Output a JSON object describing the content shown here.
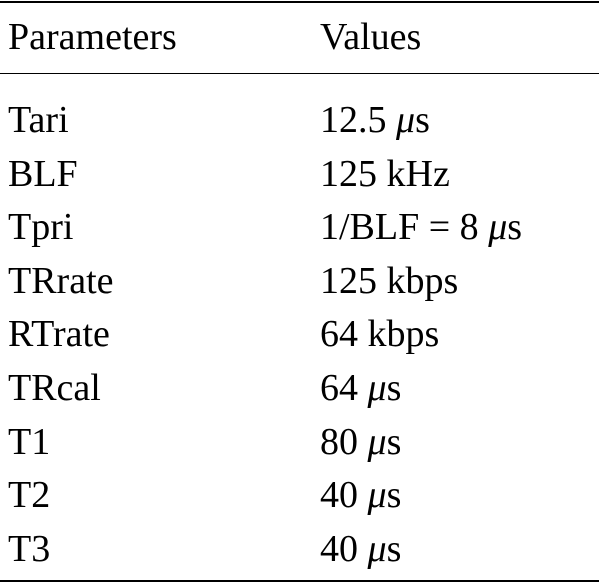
{
  "table": {
    "header": [
      "Parameters",
      "Values"
    ],
    "rows": [
      [
        "Tari",
        "12.5 μs"
      ],
      [
        "BLF",
        "125 kHz"
      ],
      [
        "Tpri",
        "1/BLF = 8 μs"
      ],
      [
        "TRrate",
        "125 kbps"
      ],
      [
        "RTrate",
        "64 kbps"
      ],
      [
        "TRcal",
        "64 μs"
      ],
      [
        "T1",
        "80 μs"
      ],
      [
        "T2",
        "40 μs"
      ],
      [
        "T3",
        "40 μs"
      ]
    ]
  }
}
